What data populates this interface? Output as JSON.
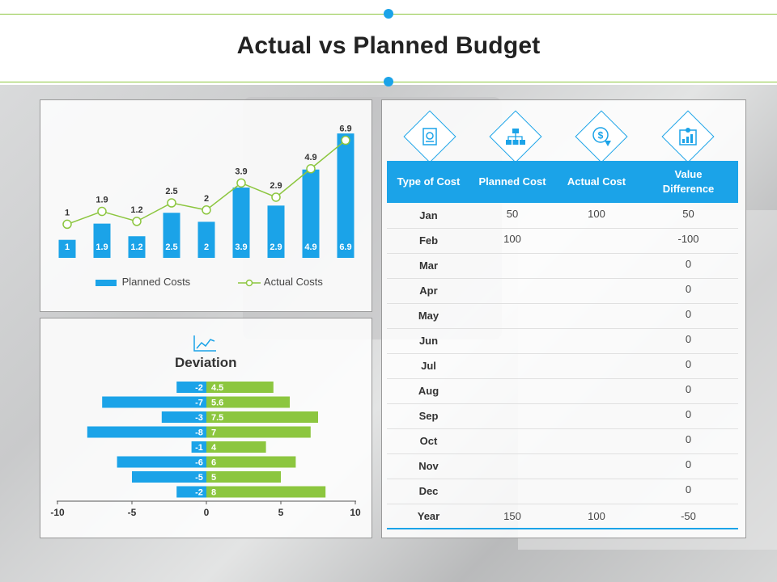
{
  "title": "Actual vs Planned Budget",
  "colors": {
    "accent_blue": "#1ba3e8",
    "accent_green": "#8cc63f"
  },
  "chart_data": [
    {
      "type": "bar",
      "categories": [
        "",
        "",
        "",
        "",
        "",
        "",
        "",
        "",
        ""
      ],
      "series": [
        {
          "name": "Planned Costs",
          "type": "bar",
          "values": [
            1,
            1.9,
            1.2,
            2.5,
            2,
            3.9,
            2.9,
            4.9,
            6.9
          ]
        },
        {
          "name": "Actual Costs",
          "type": "line",
          "values": [
            1,
            1.9,
            1.2,
            2.5,
            2,
            3.9,
            2.9,
            4.9,
            6.9
          ]
        }
      ],
      "bar_labels": [
        "1",
        "1.9",
        "1.2",
        "2.5",
        "2",
        "3.9",
        "2.9",
        "4.9",
        "6.9"
      ],
      "line_labels": [
        "1",
        "1.9",
        "1.2",
        "2.5",
        "2",
        "3.9",
        "2.9",
        "4.9",
        "6.9"
      ],
      "legend": [
        "Planned Costs",
        "Actual Costs"
      ],
      "legend_position": "bottom",
      "ylim": [
        0,
        7.5
      ],
      "grid": false
    },
    {
      "type": "bar",
      "orientation": "horizontal",
      "title": "Deviation",
      "series": [
        {
          "values": [
            -2,
            -7,
            -3,
            -8,
            -1,
            -6,
            -5,
            -2
          ]
        },
        {
          "values": [
            4.5,
            5.6,
            7.5,
            7,
            4,
            6,
            5,
            8
          ]
        }
      ],
      "neg_labels": [
        "-2",
        "-7",
        "-3",
        "-8",
        "-1",
        "-6",
        "-5",
        "-2"
      ],
      "pos_labels": [
        "4.5",
        "5.6",
        "7.5",
        "7",
        "4",
        "6",
        "5",
        "8"
      ],
      "xlim": [
        -10,
        10
      ],
      "xticks": [
        "-10",
        "-5",
        "0",
        "5",
        "10"
      ],
      "grid": false
    }
  ],
  "table": {
    "icons": [
      "money-document-icon",
      "org-structure-icon",
      "dollar-down-icon",
      "growth-chart-icon"
    ],
    "headers": [
      "Type of Cost",
      "Planned Cost",
      "Actual Cost",
      "Value Difference"
    ],
    "rows": [
      [
        "Jan",
        "50",
        "100",
        "50"
      ],
      [
        "Feb",
        "100",
        "",
        "-100"
      ],
      [
        "Mar",
        "",
        "",
        "0"
      ],
      [
        "Apr",
        "",
        "",
        "0"
      ],
      [
        "May",
        "",
        "",
        "0"
      ],
      [
        "Jun",
        "",
        "",
        "0"
      ],
      [
        "Jul",
        "",
        "",
        "0"
      ],
      [
        "Aug",
        "",
        "",
        "0"
      ],
      [
        "Sep",
        "",
        "",
        "0"
      ],
      [
        "Oct",
        "",
        "",
        "0"
      ],
      [
        "Nov",
        "",
        "",
        "0"
      ],
      [
        "Dec",
        "",
        "",
        "0"
      ],
      [
        "Year",
        "150",
        "100",
        "-50"
      ]
    ]
  }
}
